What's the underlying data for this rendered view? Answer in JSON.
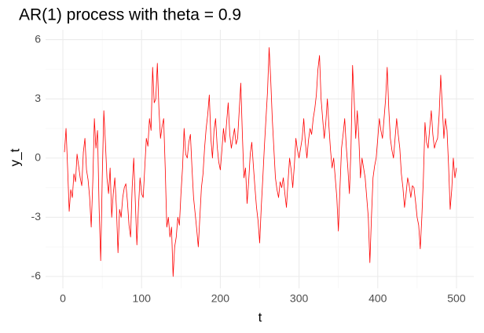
{
  "chart_data": {
    "type": "line",
    "title": "AR(1) process with theta = 0.9",
    "x_label": "t",
    "y_label": "y_t",
    "x": [
      2,
      4,
      6,
      8,
      10,
      12,
      14,
      16,
      18,
      20,
      22,
      24,
      26,
      28,
      30,
      32,
      34,
      36,
      38,
      40,
      42,
      44,
      46,
      48,
      50,
      52,
      54,
      56,
      58,
      60,
      62,
      64,
      66,
      68,
      70,
      72,
      74,
      76,
      78,
      80,
      82,
      84,
      86,
      88,
      90,
      92,
      94,
      96,
      98,
      100,
      102,
      104,
      106,
      108,
      110,
      112,
      114,
      116,
      118,
      120,
      122,
      124,
      126,
      128,
      130,
      132,
      134,
      136,
      138,
      140,
      142,
      144,
      146,
      148,
      150,
      152,
      154,
      156,
      158,
      160,
      162,
      164,
      166,
      168,
      170,
      172,
      174,
      176,
      178,
      180,
      182,
      184,
      186,
      188,
      190,
      192,
      194,
      196,
      198,
      200,
      202,
      204,
      206,
      208,
      210,
      212,
      214,
      216,
      218,
      220,
      222,
      224,
      226,
      228,
      230,
      232,
      234,
      236,
      238,
      240,
      242,
      244,
      246,
      248,
      250,
      252,
      254,
      256,
      258,
      260,
      262,
      264,
      266,
      268,
      270,
      272,
      274,
      276,
      278,
      280,
      282,
      284,
      286,
      288,
      290,
      292,
      294,
      296,
      298,
      300,
      302,
      304,
      306,
      308,
      310,
      312,
      314,
      316,
      318,
      320,
      322,
      324,
      326,
      328,
      330,
      332,
      334,
      336,
      338,
      340,
      342,
      344,
      346,
      348,
      350,
      352,
      354,
      356,
      358,
      360,
      362,
      364,
      366,
      368,
      370,
      372,
      374,
      376,
      378,
      380,
      382,
      384,
      386,
      388,
      390,
      392,
      394,
      396,
      398,
      400,
      402,
      404,
      406,
      408,
      410,
      412,
      414,
      416,
      418,
      420,
      422,
      424,
      426,
      428,
      430,
      432,
      434,
      436,
      438,
      440,
      442,
      444,
      446,
      448,
      450,
      452,
      454,
      456,
      458,
      460,
      462,
      464,
      466,
      468,
      470,
      472,
      474,
      476,
      478,
      480,
      482,
      484,
      486,
      488,
      490,
      492,
      494,
      496,
      498,
      500
    ],
    "series": [
      {
        "name": "y_t",
        "color": "#ff0000",
        "values": [
          0.3,
          1.5,
          -0.5,
          -2.7,
          -1.6,
          -2,
          -0.8,
          -1.2,
          0.2,
          -0.4,
          -1,
          -1.4,
          0.3,
          1,
          -0.6,
          -1.1,
          -2,
          -3.5,
          -1.2,
          2,
          0.5,
          1.4,
          -2.5,
          -5.2,
          -1,
          2.4,
          0.8,
          -1,
          -1.8,
          -0.5,
          -3,
          -1.8,
          -1,
          -2.5,
          -4.8,
          -2.6,
          -3,
          -2,
          -1.5,
          -1.3,
          -2.2,
          -3.4,
          -4,
          -1.5,
          0,
          -2.2,
          -4.4,
          -2.5,
          -1,
          -1.8,
          -2,
          -0.5,
          1,
          0.6,
          2,
          1.4,
          4.6,
          2.8,
          3,
          4.8,
          2.5,
          1,
          1.6,
          2,
          -0.5,
          -3.5,
          -3,
          -4,
          -3.5,
          -6,
          -4.5,
          -4,
          -3,
          -3.4,
          -1.8,
          -0.5,
          1.5,
          0.2,
          0,
          0.8,
          1.2,
          -0.5,
          -2,
          -2.8,
          -3.6,
          -4.5,
          -3,
          -1.5,
          -0.8,
          0.5,
          1.5,
          2.2,
          3.2,
          1,
          0,
          1.4,
          2,
          0.6,
          -0.2,
          -0.6,
          0.4,
          1.5,
          0.8,
          1.8,
          2.8,
          1.2,
          0.5,
          1,
          1.5,
          0.7,
          1,
          2.4,
          3.8,
          1.2,
          -1,
          -0.5,
          -2.3,
          -1.2,
          0.2,
          0.8,
          -0.4,
          -1.5,
          -2.5,
          -3.2,
          -4.3,
          -2.5,
          -1,
          0.6,
          2,
          3.4,
          5.6,
          4,
          2,
          0.5,
          -1,
          -1.6,
          -2,
          -1.2,
          -1.5,
          -1,
          -1.8,
          -2.5,
          -1.2,
          0,
          -0.6,
          -1.5,
          -0.4,
          1,
          0.4,
          0,
          0.5,
          1,
          2,
          0.8,
          0,
          0.9,
          1.5,
          1.2,
          2,
          2.5,
          3.2,
          4.5,
          5.2,
          3,
          2,
          1,
          1.8,
          3,
          1.6,
          0.4,
          -0.5,
          0,
          -1,
          -2,
          -3.7,
          -1.5,
          0.5,
          1.2,
          2,
          0.6,
          -0.5,
          -1.8,
          0.5,
          4.7,
          3,
          1,
          2.4,
          1,
          -1,
          0,
          -0.5,
          -1,
          -2,
          -3,
          -5.3,
          -3,
          -1,
          -0.4,
          0,
          1,
          2,
          1.4,
          1,
          2,
          3,
          4.6,
          2.5,
          1,
          0.4,
          0,
          1,
          2,
          1.2,
          0.5,
          -0.8,
          -1.5,
          -2.5,
          -1.8,
          -1,
          -1.4,
          -2,
          -1.4,
          -1.5,
          -2.2,
          -3,
          -3.4,
          -4.6,
          -3,
          -1,
          1.8,
          0.8,
          0.5,
          1.5,
          2.4,
          1.2,
          0.5,
          0.8,
          1,
          2.2,
          4.2,
          2.6,
          1,
          2,
          1.4,
          -0.4,
          -2.6,
          -1.6,
          0,
          -1,
          -0.5
        ]
      }
    ],
    "xlim": [
      -22,
      522
    ],
    "ylim": [
      -6.6,
      6.5
    ],
    "xticks": [
      0,
      100,
      200,
      300,
      400,
      500
    ],
    "yticks": [
      -6,
      -3,
      0,
      3,
      6
    ],
    "x_minor_ticks": [
      50,
      150,
      250,
      350,
      450
    ],
    "y_minor_ticks": [
      -4.5,
      -1.5,
      1.5,
      4.5
    ],
    "grid": true
  }
}
